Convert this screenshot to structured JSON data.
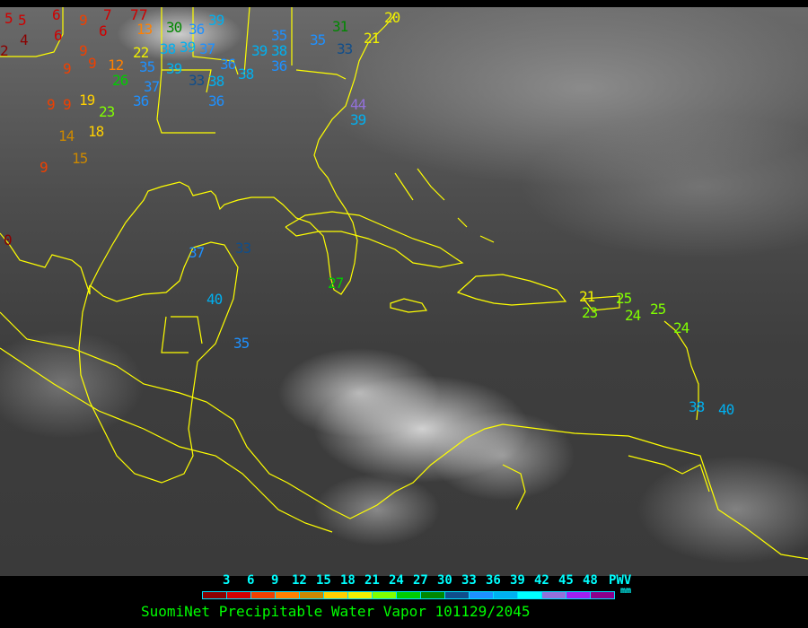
{
  "caption": "SuomiNet Precipitable Water Vapor 101129/2045",
  "legend": {
    "ticks": [
      "3",
      "6",
      "9",
      "12",
      "15",
      "18",
      "21",
      "24",
      "27",
      "30",
      "33",
      "36",
      "39",
      "42",
      "45",
      "48"
    ],
    "unit_label": "PWV",
    "unit": "mm",
    "colors": [
      "#8b0000",
      "#d00000",
      "#f04000",
      "#ff8000",
      "#cc8800",
      "#ffd000",
      "#f0f000",
      "#80ff00",
      "#00cc00",
      "#008800",
      "#104e8b",
      "#1e90ff",
      "#00b0f0",
      "#00ffff",
      "#9370db",
      "#a020f0",
      "#8b008b"
    ]
  },
  "map": {
    "coastline_color": "#ffff00",
    "stations": [
      "5",
      "5",
      "6",
      "9",
      "6",
      "7",
      "6",
      "7",
      "7",
      "13",
      "30",
      "36",
      "39",
      "2",
      "4",
      "9",
      "9",
      "9",
      "12",
      "22",
      "38",
      "39",
      "37",
      "26",
      "35",
      "39",
      "36",
      "37",
      "33",
      "38",
      "38",
      "36",
      "36",
      "9",
      "9",
      "19",
      "23",
      "14",
      "18",
      "15",
      "9",
      "0",
      "39",
      "35",
      "38",
      "36",
      "35",
      "31",
      "33",
      "20",
      "21",
      "44",
      "39",
      "37",
      "33",
      "27",
      "40",
      "35",
      "21",
      "23",
      "25",
      "24",
      "25",
      "24",
      "38",
      "40"
    ]
  }
}
